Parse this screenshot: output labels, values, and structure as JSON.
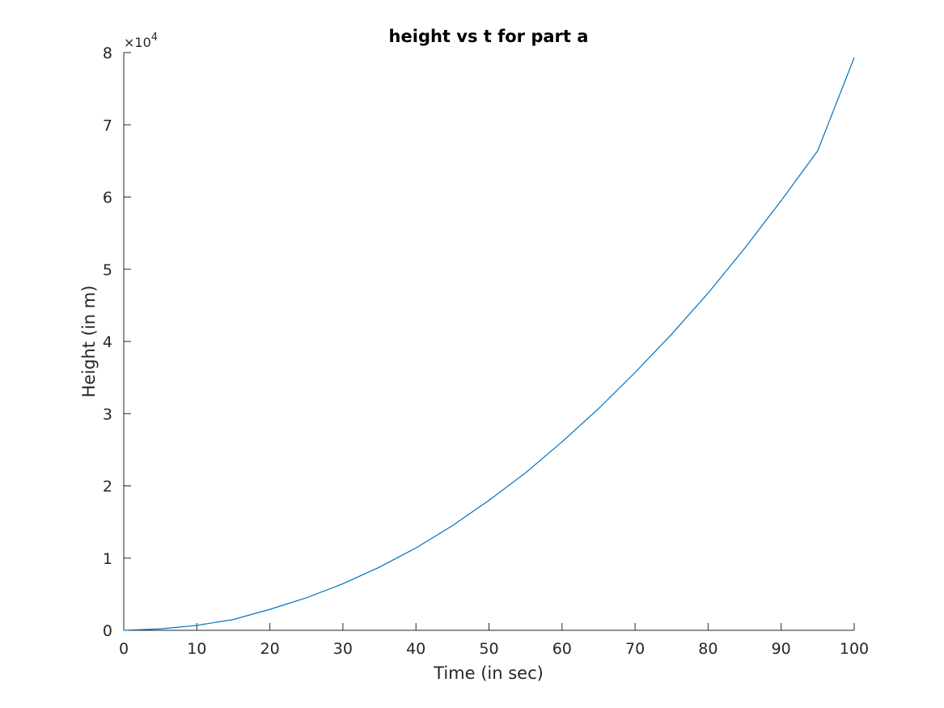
{
  "chart_data": {
    "type": "line",
    "title": "height vs t for part a",
    "xlabel": "Time (in sec)",
    "ylabel": "Height (in m)",
    "xlim": [
      0,
      100
    ],
    "ylim": [
      0,
      80000
    ],
    "grid": false,
    "legend": "none",
    "x_ticks": [
      0,
      10,
      20,
      30,
      40,
      50,
      60,
      70,
      80,
      90,
      100
    ],
    "x_tick_labels": [
      "0",
      "10",
      "20",
      "30",
      "40",
      "50",
      "60",
      "70",
      "80",
      "90",
      "100"
    ],
    "y_ticks": [
      0,
      10000,
      20000,
      30000,
      40000,
      50000,
      60000,
      70000,
      80000
    ],
    "y_tick_labels": [
      "0",
      "1",
      "2",
      "3",
      "4",
      "5",
      "6",
      "7",
      "8"
    ],
    "y_exponent": {
      "base": "×10",
      "power": "4"
    },
    "series": [
      {
        "color": "#0072BD",
        "x": [
          0,
          5,
          10,
          15,
          20,
          25,
          30,
          35,
          40,
          45,
          50,
          55,
          60,
          65,
          70,
          75,
          80,
          85,
          90,
          95,
          100
        ],
        "y": [
          0,
          200,
          680,
          1500,
          2900,
          4500,
          6450,
          8750,
          11400,
          14500,
          18000,
          21800,
          26100,
          30700,
          35700,
          41000,
          46700,
          52900,
          59500,
          66400,
          79300
        ]
      }
    ]
  }
}
